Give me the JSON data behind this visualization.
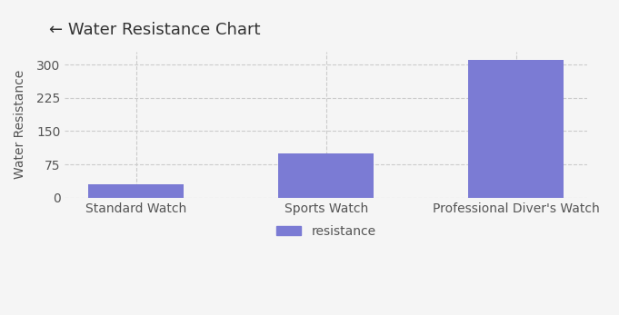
{
  "categories": [
    "Standard Watch",
    "Sports Watch",
    "Professional Diver's Watch"
  ],
  "values": [
    30,
    100,
    310
  ],
  "bar_color": "#7B7BD4",
  "title": "Water Resistance Chart",
  "ylabel": "Water Resistance",
  "xlabel": "",
  "ylim": [
    0,
    330
  ],
  "yticks": [
    0,
    75,
    150,
    225,
    300
  ],
  "legend_label": "resistance",
  "background_color": "#f5f5f5",
  "plot_bg_color": "#f5f5f5",
  "grid_color": "#cccccc",
  "title_fontsize": 13,
  "axis_fontsize": 10,
  "tick_fontsize": 10
}
